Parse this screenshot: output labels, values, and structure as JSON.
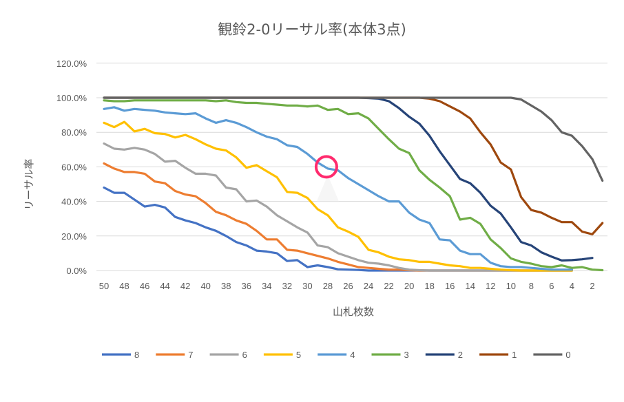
{
  "chart_data": {
    "type": "line",
    "title": "観鈴2-0リーサル率(本体3点)",
    "xlabel": "山札枚数",
    "ylabel": "リーサル率",
    "x_reversed": true,
    "x_start": 50,
    "xlim": [
      50,
      1
    ],
    "ylim": [
      0,
      120
    ],
    "y_ticks": [
      "0.0%",
      "20.0%",
      "40.0%",
      "60.0%",
      "80.0%",
      "100.0%",
      "120.0%"
    ],
    "x_ticks": [
      "50",
      "48",
      "46",
      "44",
      "42",
      "40",
      "38",
      "36",
      "34",
      "32",
      "30",
      "28",
      "26",
      "24",
      "22",
      "20",
      "18",
      "16",
      "14",
      "12",
      "10",
      "8",
      "6",
      "4",
      "2"
    ],
    "grid": true,
    "legend_position": "bottom",
    "series": [
      {
        "name": "8",
        "color": "#4472C4",
        "values": [
          48,
          45,
          45,
          41,
          37,
          38,
          36.5,
          31,
          29,
          27.5,
          25,
          23,
          20,
          16.5,
          14.5,
          11.5,
          11,
          10,
          5.5,
          6,
          2,
          3,
          2,
          0.7,
          0.5,
          0.3,
          0,
          0,
          0,
          0,
          0,
          0,
          0,
          0,
          0,
          0,
          0,
          0,
          0,
          0,
          0,
          0,
          0,
          0,
          0,
          0,
          0
        ]
      },
      {
        "name": "7",
        "color": "#ED7D31",
        "values": [
          62,
          59,
          57,
          57,
          56,
          51.5,
          50.5,
          46,
          44,
          43,
          39,
          34,
          32,
          29,
          27,
          23,
          18,
          18,
          12,
          11.5,
          10,
          8.5,
          7,
          5,
          3.5,
          2,
          1.5,
          1,
          0.5,
          0.5,
          0.2,
          0,
          0,
          0,
          0,
          0,
          0,
          0,
          0,
          0,
          0,
          0,
          0,
          0,
          0,
          0,
          0
        ]
      },
      {
        "name": "6",
        "color": "#A5A5A5",
        "values": [
          73.5,
          70.5,
          70,
          71,
          70,
          67.5,
          63,
          63.5,
          59.5,
          56,
          56,
          55,
          48,
          47,
          40,
          40.5,
          37,
          32,
          28.5,
          25,
          22,
          14.5,
          13.5,
          10,
          8,
          6,
          4.5,
          4,
          3,
          1.5,
          0.5,
          0.2,
          0,
          0,
          0,
          0,
          0,
          0,
          0,
          0,
          0,
          0,
          0,
          0,
          0,
          0,
          0
        ]
      },
      {
        "name": "5",
        "color": "#FFC000",
        "values": [
          85.5,
          83,
          86,
          80.5,
          82,
          79.5,
          79,
          77,
          78.5,
          76,
          73,
          70.5,
          69.5,
          65.5,
          59.5,
          61,
          57.5,
          54,
          45.5,
          45,
          42,
          35.5,
          32,
          25,
          22.5,
          19.5,
          12,
          10.5,
          8,
          6.5,
          6,
          5,
          5,
          4,
          3,
          2.5,
          1.5,
          1.5,
          1,
          0.5,
          0.2,
          0,
          0,
          0,
          0,
          0,
          0
        ]
      },
      {
        "name": "4",
        "color": "#5B9BD5",
        "values": [
          93.5,
          94.5,
          92.5,
          93.5,
          93,
          92.5,
          91.5,
          91,
          90.5,
          91,
          88,
          85.5,
          87,
          85.5,
          83,
          80,
          77.5,
          76,
          72.5,
          71.5,
          67.5,
          62.5,
          59,
          58,
          53.5,
          50,
          46.5,
          43,
          40,
          40,
          33.5,
          29.5,
          27.5,
          18,
          17.5,
          11.5,
          9.5,
          9.5,
          4.5,
          2.5,
          2,
          2,
          1.5,
          1,
          0.5,
          0.5,
          0.5
        ]
      },
      {
        "name": "3",
        "color": "#70AD47",
        "values": [
          98.5,
          98,
          98,
          98.5,
          98.5,
          98.5,
          98.5,
          98.5,
          98.5,
          98.5,
          98.5,
          98,
          98.5,
          97.5,
          97,
          97,
          96.5,
          96,
          95.5,
          95.5,
          95,
          95.5,
          93,
          93.5,
          90.5,
          91,
          88,
          82,
          76,
          70.5,
          68,
          58,
          52.5,
          48,
          43,
          29.5,
          30.5,
          27,
          18,
          13,
          7,
          5,
          4,
          2.5,
          2,
          3,
          1.5,
          2,
          0.5,
          0.2
        ]
      },
      {
        "name": "2",
        "color": "#264478",
        "values": [
          100,
          100,
          100,
          100,
          100,
          100,
          100,
          100,
          100,
          100,
          100,
          100,
          100,
          100,
          100,
          100,
          100,
          100,
          100,
          100,
          100,
          100,
          100,
          100,
          100,
          100,
          99.8,
          99.5,
          98,
          94,
          89,
          85,
          78,
          69,
          61,
          53,
          50.5,
          45,
          37.5,
          33,
          25,
          16.5,
          14.5,
          10.5,
          8,
          5.8,
          6,
          6.5,
          7.3
        ]
      },
      {
        "name": "1",
        "color": "#9E480E",
        "values": [
          100,
          100,
          100,
          100,
          100,
          100,
          100,
          100,
          100,
          100,
          100,
          100,
          100,
          100,
          100,
          100,
          100,
          100,
          100,
          100,
          100,
          100,
          100,
          100,
          100,
          100,
          100,
          100,
          100,
          100,
          100,
          100,
          99.5,
          98,
          95,
          92,
          88,
          80,
          73,
          62.5,
          58.5,
          42.5,
          35,
          33.5,
          30.5,
          28,
          28,
          22.5,
          21,
          27.5
        ]
      },
      {
        "name": "0",
        "color": "#636363",
        "values": [
          100,
          100,
          100,
          100,
          100,
          100,
          100,
          100,
          100,
          100,
          100,
          100,
          100,
          100,
          100,
          100,
          100,
          100,
          100,
          100,
          100,
          100,
          100,
          100,
          100,
          100,
          100,
          100,
          100,
          100,
          100,
          100,
          100,
          100,
          100,
          100,
          100,
          100,
          100,
          100,
          100,
          99,
          95.5,
          92,
          87,
          80,
          78,
          72,
          64.5,
          52
        ]
      }
    ],
    "annotation": {
      "marker": "circle",
      "color": "#FF2A6D",
      "x": 28,
      "y": 60
    }
  }
}
